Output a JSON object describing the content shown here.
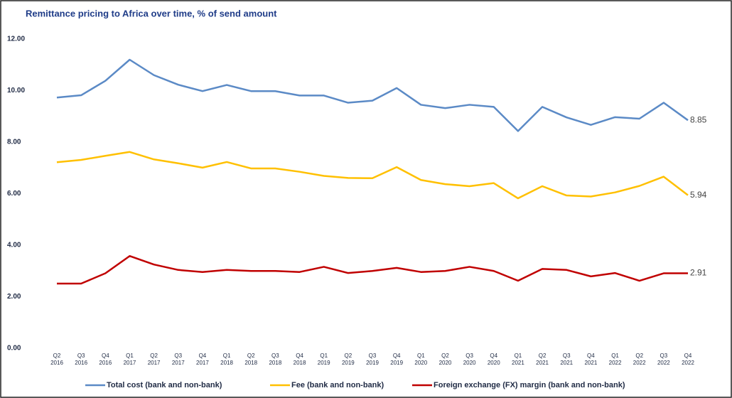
{
  "chart_data": {
    "type": "line",
    "title": "Remittance pricing to Africa over time, % of send amount",
    "categories": [
      [
        "Q2",
        "2016"
      ],
      [
        "Q3",
        "2016"
      ],
      [
        "Q4",
        "2016"
      ],
      [
        "Q1",
        "2017"
      ],
      [
        "Q2",
        "2017"
      ],
      [
        "Q3",
        "2017"
      ],
      [
        "Q4",
        "2017"
      ],
      [
        "Q1",
        "2018"
      ],
      [
        "Q2",
        "2018"
      ],
      [
        "Q3",
        "2018"
      ],
      [
        "Q4",
        "2018"
      ],
      [
        "Q1",
        "2019"
      ],
      [
        "Q2",
        "2019"
      ],
      [
        "Q3",
        "2019"
      ],
      [
        "Q4",
        "2019"
      ],
      [
        "Q1",
        "2020"
      ],
      [
        "Q2",
        "2020"
      ],
      [
        "Q3",
        "2020"
      ],
      [
        "Q4",
        "2020"
      ],
      [
        "Q1",
        "2021"
      ],
      [
        "Q2",
        "2021"
      ],
      [
        "Q3",
        "2021"
      ],
      [
        "Q4",
        "2021"
      ],
      [
        "Q1",
        "2022"
      ],
      [
        "Q2",
        "2022"
      ],
      [
        "Q3",
        "2022"
      ],
      [
        "Q4",
        "2022"
      ]
    ],
    "series": [
      {
        "name": "Total cost (bank and non-bank)",
        "color": "#5b8ac6",
        "values": [
          9.73,
          9.82,
          10.38,
          11.2,
          10.6,
          10.23,
          9.98,
          10.22,
          9.98,
          9.98,
          9.81,
          9.81,
          9.53,
          9.61,
          10.1,
          9.45,
          9.32,
          9.45,
          9.37,
          8.43,
          9.37,
          8.96,
          8.67,
          8.97,
          8.91,
          9.53,
          8.85
        ]
      },
      {
        "name": "Fee (bank and non-bank)",
        "color": "#ffc000",
        "values": [
          7.22,
          7.31,
          7.47,
          7.62,
          7.33,
          7.18,
          7.01,
          7.23,
          6.98,
          6.98,
          6.85,
          6.69,
          6.61,
          6.6,
          7.03,
          6.53,
          6.37,
          6.29,
          6.41,
          5.82,
          6.29,
          5.93,
          5.89,
          6.05,
          6.3,
          6.66,
          5.94
        ]
      },
      {
        "name": "Foreign exchange (FX) margin (bank and non-bank)",
        "color": "#c00000",
        "values": [
          2.51,
          2.51,
          2.91,
          3.58,
          3.25,
          3.04,
          2.96,
          3.04,
          3.0,
          3.0,
          2.96,
          3.16,
          2.92,
          3.0,
          3.12,
          2.96,
          3.0,
          3.16,
          3.0,
          2.62,
          3.08,
          3.04,
          2.79,
          2.92,
          2.62,
          2.91,
          2.91
        ]
      }
    ],
    "ylim": [
      0,
      12
    ],
    "yticks": [
      {
        "value": 0,
        "label": "0.00"
      },
      {
        "value": 2,
        "label": "2.00"
      },
      {
        "value": 4,
        "label": "4.00"
      },
      {
        "value": 6,
        "label": "6.00"
      },
      {
        "value": 8,
        "label": "8.00"
      },
      {
        "value": 10,
        "label": "10.00"
      },
      {
        "value": 12,
        "label": "12.00"
      }
    ],
    "grid": false,
    "legend": "bottom"
  }
}
